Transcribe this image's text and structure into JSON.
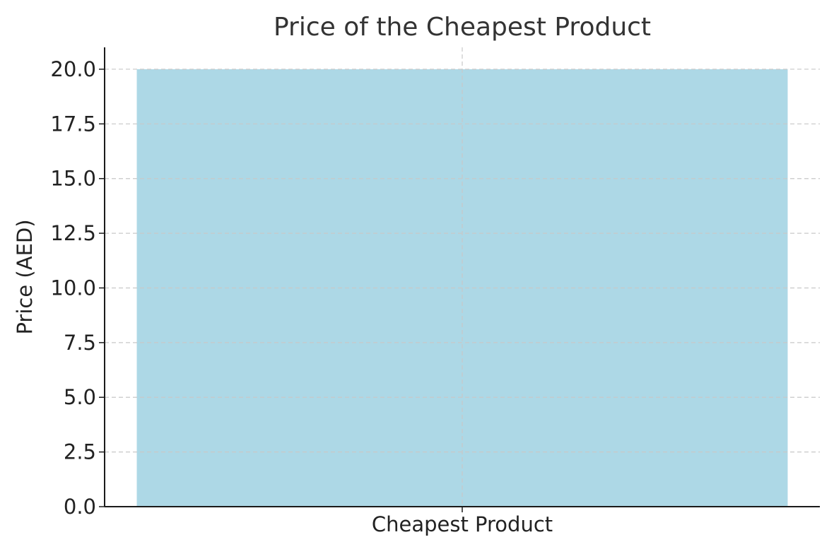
{
  "chart_data": {
    "type": "bar",
    "title": "Price of the Cheapest Product",
    "xlabel": "",
    "ylabel": "Price (AED)",
    "categories": [
      "Cheapest Product"
    ],
    "values": [
      20.0
    ],
    "ylim": [
      0,
      21
    ],
    "y_ticks": [
      "0.0",
      "2.5",
      "5.0",
      "7.5",
      "10.0",
      "12.5",
      "15.0",
      "17.5",
      "20.0"
    ],
    "grid": true,
    "legend": "none",
    "colors": {
      "bar": "#add8e6",
      "axis": "#1a1a1a",
      "grid": "#c8c8c8",
      "text": "#222222",
      "title": "#333333"
    }
  }
}
